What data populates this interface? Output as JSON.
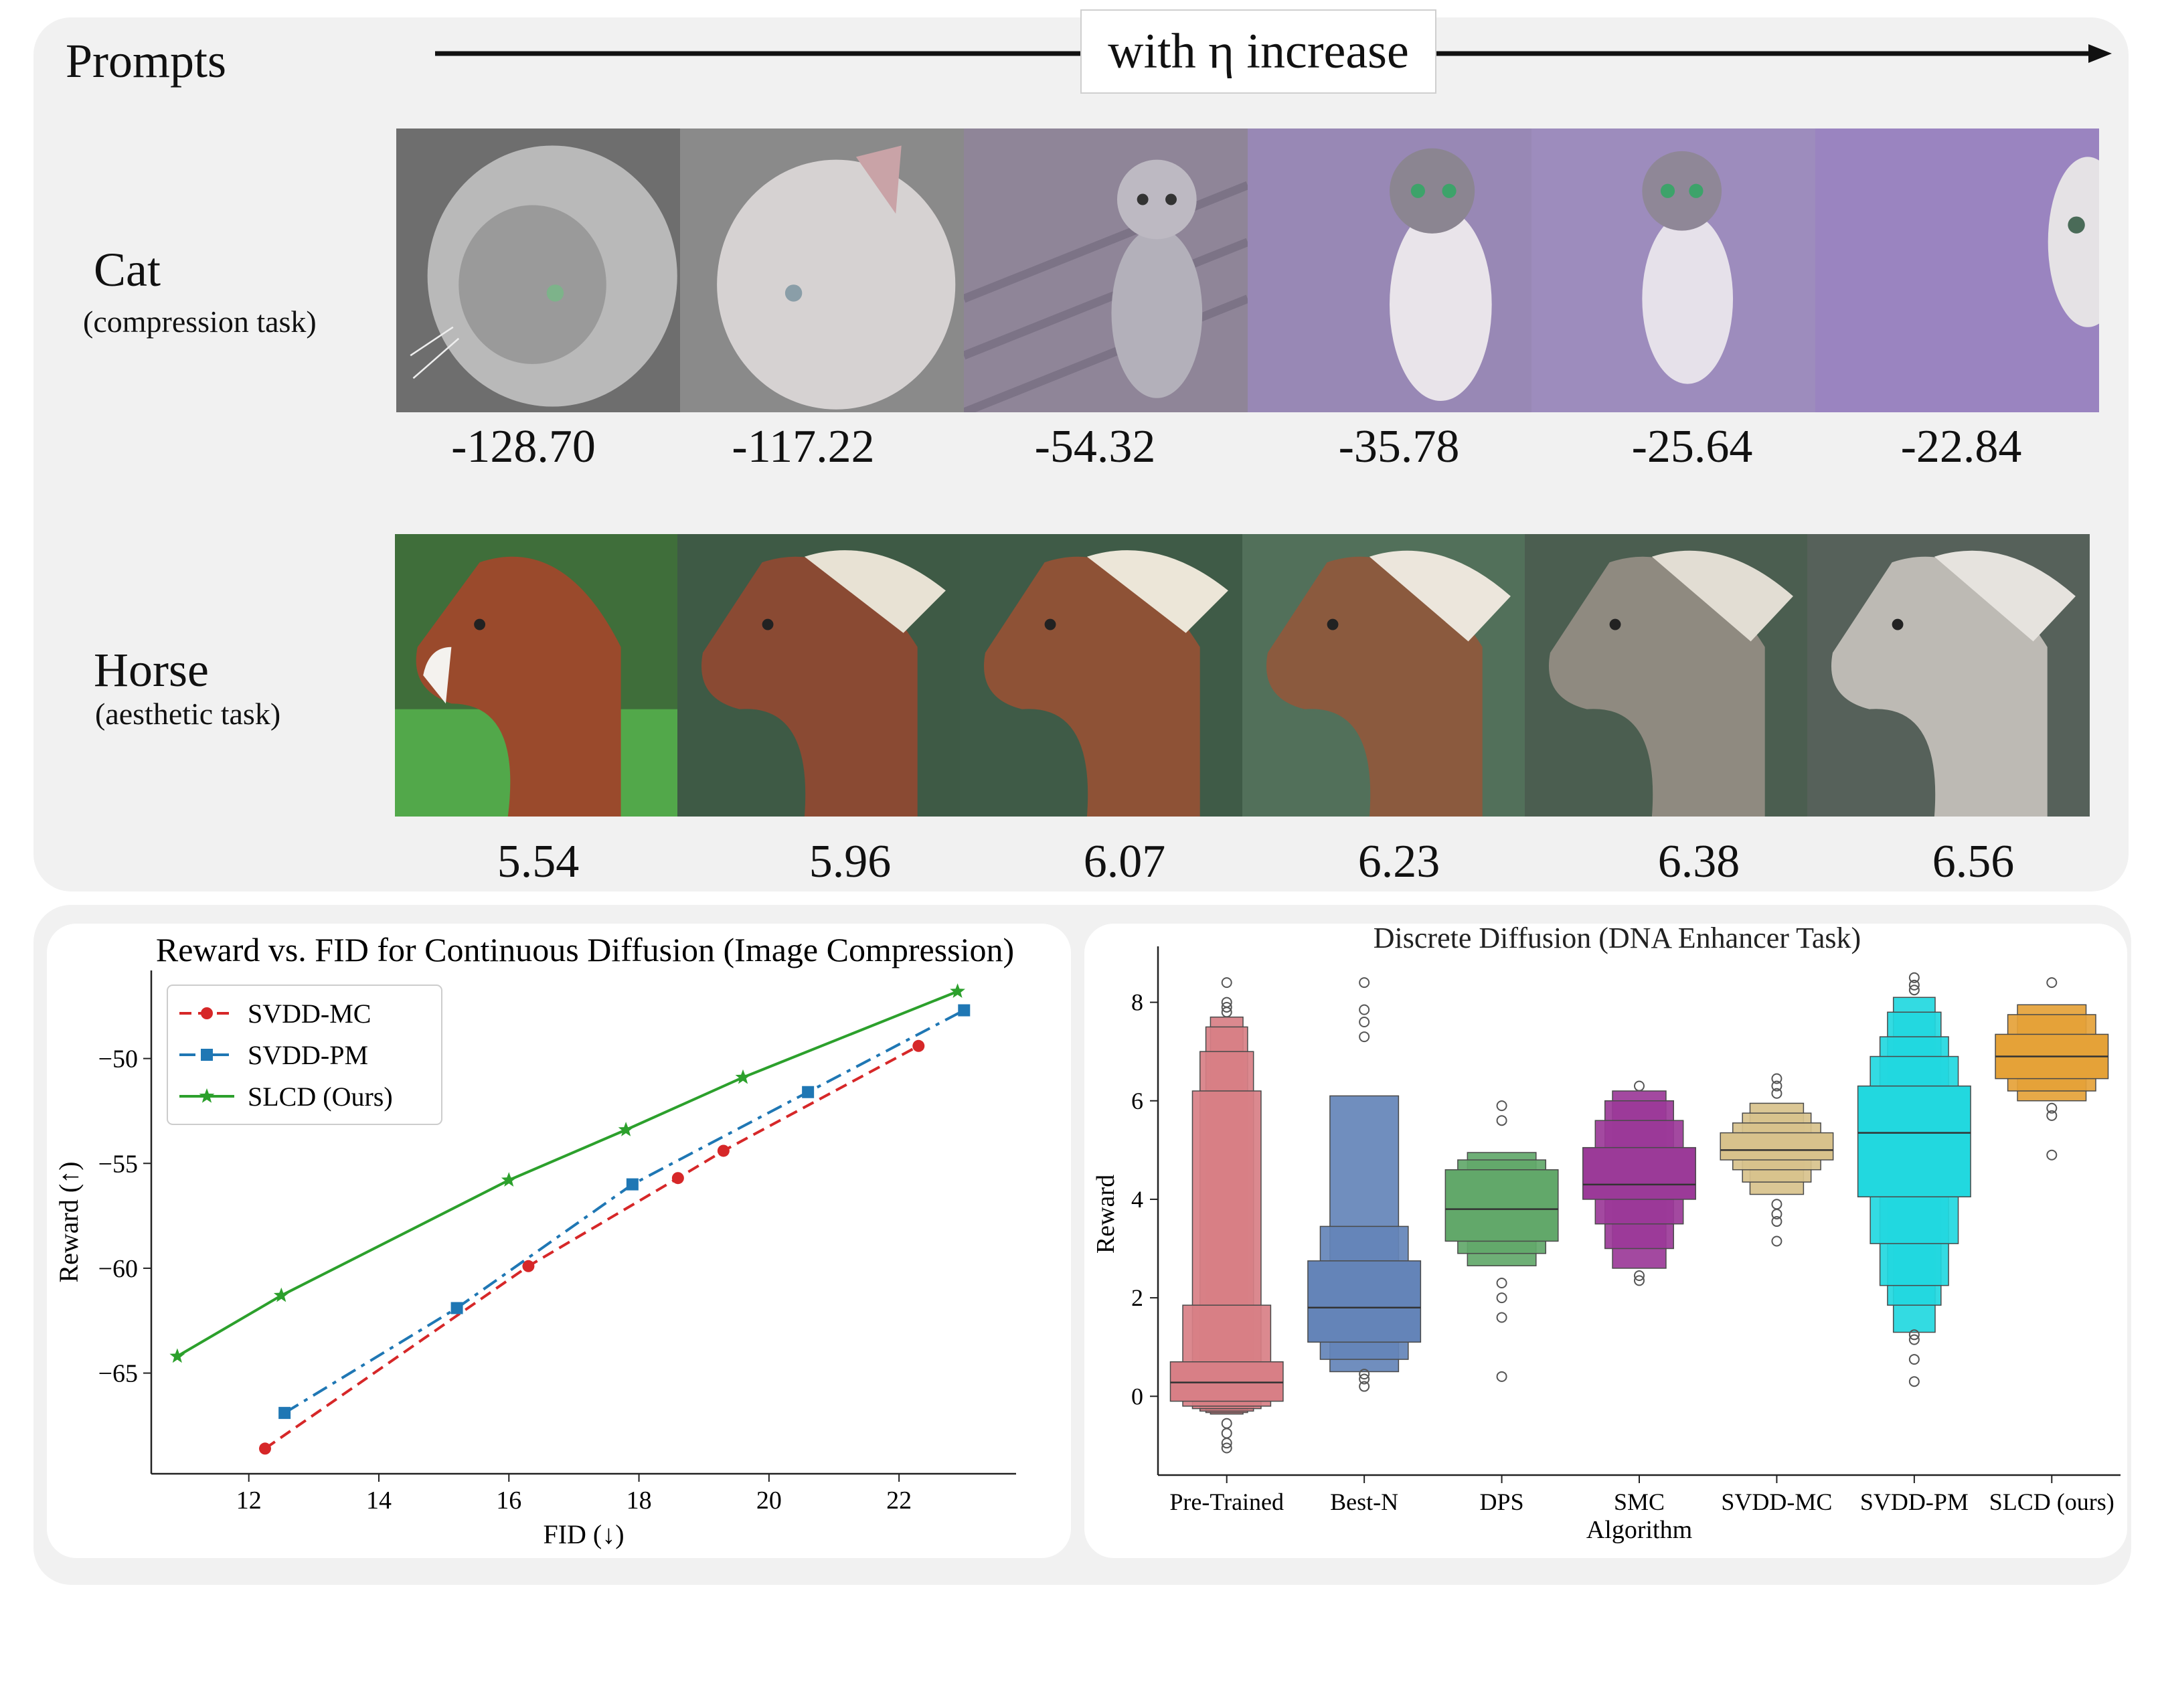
{
  "header": {
    "prompts_label": "Prompts",
    "eta_label": "with η increase"
  },
  "rows": [
    {
      "name": "Cat",
      "task": "(compression task)",
      "scores": [
        "-128.70",
        "-117.22",
        "-54.32",
        "-35.78",
        "-25.64",
        "-22.84"
      ]
    },
    {
      "name": "Horse",
      "task": "(aesthetic task)",
      "scores": [
        "5.54",
        "5.96",
        "6.07",
        "6.23",
        "6.38",
        "6.56"
      ]
    }
  ],
  "chart_data": [
    {
      "type": "line",
      "title": "Reward vs. FID for Continuous Diffusion (Image Compression)",
      "xlabel": "FID (↓)",
      "ylabel": "Reward (↑)",
      "xlim": [
        10.5,
        23.8
      ],
      "ylim": [
        -69.8,
        -45.8
      ],
      "xticks": [
        12,
        14,
        16,
        18,
        20,
        22
      ],
      "yticks": [
        -50,
        -55,
        -60,
        -65
      ],
      "grid": false,
      "legend": "top-left",
      "series": [
        {
          "name": "SVDD-MC",
          "color": "#d62728",
          "marker": "circle",
          "dash": "dashed",
          "x": [
            12.25,
            16.3,
            18.6,
            19.3,
            22.3
          ],
          "y": [
            -68.6,
            -59.9,
            -55.7,
            -54.4,
            -49.4
          ]
        },
        {
          "name": "SVDD-PM",
          "color": "#1f77b4",
          "marker": "square",
          "dash": "dashdot",
          "x": [
            12.55,
            15.2,
            17.9,
            20.6,
            23.0
          ],
          "y": [
            -66.9,
            -61.9,
            -56.0,
            -51.6,
            -47.7
          ]
        },
        {
          "name": "SLCD (Ours)",
          "color": "#2ca02c",
          "marker": "star",
          "dash": "solid",
          "x": [
            10.9,
            12.5,
            16.0,
            17.8,
            19.6,
            22.9
          ],
          "y": [
            -64.2,
            -61.3,
            -55.8,
            -53.4,
            -50.9,
            -46.8
          ]
        }
      ]
    },
    {
      "type": "boxen",
      "title": "Discrete Diffusion (DNA Enhancer Task)",
      "xlabel": "Algorithm",
      "ylabel": "Reward",
      "ylim": [
        -1.6,
        9.0
      ],
      "yticks": [
        0,
        2,
        4,
        6,
        8
      ],
      "categories": [
        "Pre-Trained",
        "Best-N",
        "DPS",
        "SMC",
        "SVDD-MC",
        "SVDD-PM",
        "SLCD (ours)"
      ],
      "groups": [
        {
          "color": "#d87f86",
          "median": 0.28,
          "boxes": [
            [
              -0.1,
              0.7
            ],
            [
              -0.2,
              1.85
            ],
            [
              -0.25,
              6.2
            ],
            [
              -0.3,
              7.0
            ],
            [
              -0.33,
              7.5
            ],
            [
              -0.36,
              7.7
            ]
          ],
          "outliers": [
            8.4,
            8.0,
            7.9,
            7.8,
            -0.55,
            -0.75,
            -0.95,
            -1.05
          ]
        },
        {
          "color": "#6484b8",
          "median": 1.8,
          "boxes": [
            [
              1.1,
              2.75
            ],
            [
              0.75,
              3.45
            ],
            [
              0.5,
              6.1
            ]
          ],
          "outliers": [
            8.4,
            7.85,
            7.6,
            7.3,
            0.45,
            0.35,
            0.2
          ]
        },
        {
          "color": "#62a86a",
          "median": 3.8,
          "boxes": [
            [
              3.15,
              4.6
            ],
            [
              2.9,
              4.8
            ],
            [
              2.65,
              4.95
            ]
          ],
          "outliers": [
            5.9,
            5.6,
            2.3,
            2.0,
            1.6,
            0.4
          ]
        },
        {
          "color": "#9b3a98",
          "median": 4.3,
          "boxes": [
            [
              4.0,
              5.05
            ],
            [
              3.5,
              5.6
            ],
            [
              3.0,
              6.0
            ],
            [
              2.6,
              6.2
            ]
          ],
          "outliers": [
            6.3,
            2.45,
            2.35
          ]
        },
        {
          "color": "#d8c28c",
          "median": 5.0,
          "boxes": [
            [
              4.8,
              5.35
            ],
            [
              4.6,
              5.55
            ],
            [
              4.35,
              5.75
            ],
            [
              4.1,
              5.95
            ]
          ],
          "outliers": [
            6.45,
            6.3,
            6.15,
            3.9,
            3.7,
            3.55,
            3.15
          ]
        },
        {
          "color": "#22d8df",
          "median": 5.35,
          "boxes": [
            [
              4.05,
              6.3
            ],
            [
              3.1,
              6.9
            ],
            [
              2.25,
              7.3
            ],
            [
              1.85,
              7.8
            ],
            [
              1.3,
              8.1
            ]
          ],
          "outliers": [
            8.5,
            8.35,
            8.25,
            1.25,
            1.15,
            0.75,
            0.3
          ]
        },
        {
          "color": "#e5a238",
          "median": 6.9,
          "boxes": [
            [
              6.45,
              7.35
            ],
            [
              6.2,
              7.75
            ],
            [
              6.0,
              7.95
            ]
          ],
          "outliers": [
            8.4,
            5.85,
            5.7,
            4.9
          ]
        }
      ]
    }
  ]
}
